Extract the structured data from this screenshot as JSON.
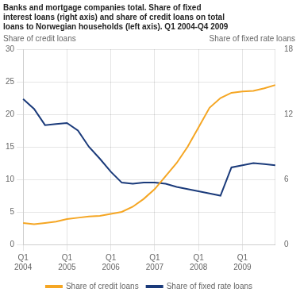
{
  "chart_data": {
    "type": "line",
    "title": "Banks and mortgage companies total. Share of fixed\ninterest loans (right axis) and share of credit loans on total\nloans to Norwegian households (left axis). Q1 2004-Q4 2009",
    "ylabel": "Share of credit loans",
    "y2label": "Share of fixed rate loans",
    "categories": [
      "Q1\n2004",
      null,
      null,
      null,
      "Q1\n2005",
      null,
      null,
      null,
      "Q1\n2006",
      null,
      null,
      null,
      "Q1\n2007",
      null,
      null,
      null,
      "Q1\n2008",
      null,
      null,
      null,
      "Q1\n2009",
      null,
      null,
      null
    ],
    "series": [
      {
        "name": "Share of credit loans",
        "color": "#f5a623",
        "values": [
          3.3,
          3.1,
          3.3,
          3.5,
          3.9,
          4.1,
          4.3,
          4.4,
          4.7,
          5.0,
          5.8,
          7.0,
          8.5,
          10.5,
          12.5,
          15.0,
          18.0,
          21.0,
          22.5,
          23.3,
          23.5,
          23.6,
          24.0,
          24.5
        ]
      },
      {
        "name": "Share of fixed rate loans",
        "color": "#1a3a7a",
        "axis": "y2",
        "values": [
          13.4,
          12.5,
          11.0,
          11.1,
          11.2,
          10.5,
          9.0,
          7.9,
          6.7,
          5.7,
          5.6,
          5.7,
          5.7,
          5.6,
          5.3,
          5.1,
          4.9,
          4.7,
          4.5,
          7.1,
          7.3,
          7.5,
          7.4,
          7.3
        ]
      }
    ],
    "ylim": [
      0,
      30
    ],
    "yticks": [
      0,
      5,
      10,
      15,
      20,
      25,
      30
    ],
    "y2lim": [
      0,
      18
    ],
    "y2ticks": [
      0,
      6,
      12,
      18
    ],
    "grid": true,
    "legend": "bottom"
  }
}
